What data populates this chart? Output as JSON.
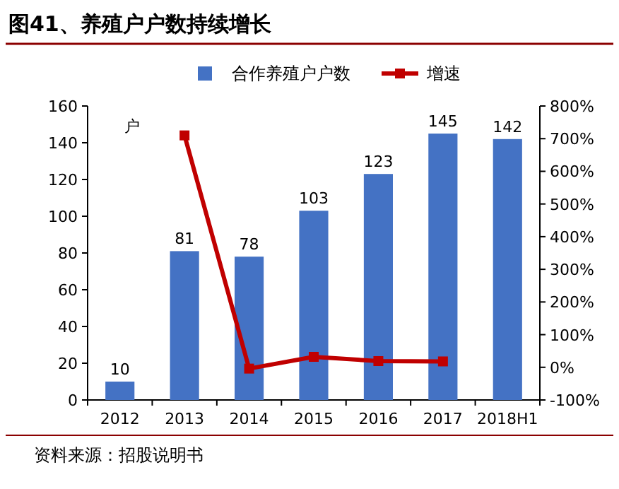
{
  "chart_data": {
    "type": "bar",
    "title": "图41、养殖户户数持续增长",
    "categories": [
      "2012",
      "2013",
      "2014",
      "2015",
      "2016",
      "2017",
      "2018H1"
    ],
    "series": [
      {
        "name": "合作养殖户户数",
        "color": "#4472c4",
        "values": [
          10,
          81,
          78,
          103,
          123,
          145,
          142
        ],
        "value_labels": [
          "10",
          "81",
          "78",
          "103",
          "123",
          "145",
          "142"
        ]
      },
      {
        "name": "增速",
        "type": "line",
        "axis": "y2",
        "color": "#c00000",
        "marker": "square",
        "values": [
          null,
          710,
          -4,
          32,
          19,
          18,
          null
        ]
      }
    ],
    "ylabel": "户",
    "ylim": [
      0,
      160
    ],
    "yticks": [
      0,
      20,
      40,
      60,
      80,
      100,
      120,
      140,
      160
    ],
    "y2lim": [
      -100,
      800
    ],
    "y2ticks": [
      {
        "value": -100,
        "label": "-100%"
      },
      {
        "value": 0,
        "label": "0%"
      },
      {
        "value": 100,
        "label": "100%"
      },
      {
        "value": 200,
        "label": "200%"
      },
      {
        "value": 300,
        "label": "300%"
      },
      {
        "value": 400,
        "label": "400%"
      },
      {
        "value": 500,
        "label": "500%"
      },
      {
        "value": 600,
        "label": "600%"
      },
      {
        "value": 700,
        "label": "700%"
      },
      {
        "value": 800,
        "label": "800%"
      }
    ],
    "legend": "top",
    "annotations": [
      "资料来源：招股说明书"
    ]
  }
}
